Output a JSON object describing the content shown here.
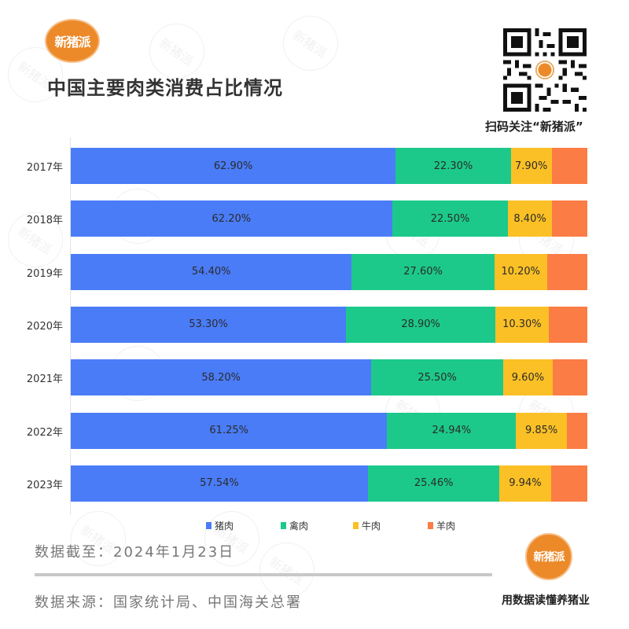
{
  "header": {
    "logo_text": "新猪派",
    "title": "中国主要肉类消费占比情况",
    "qr_caption": "扫码关注“新猪派”",
    "qr_center_text": "新猪派"
  },
  "colors": {
    "pork": "#4a7cf7",
    "poultry": "#1cc98b",
    "beef": "#fbc026",
    "mutton": "#fb7c45",
    "brand_orange": "#ec8a2a"
  },
  "chart_data": {
    "type": "bar",
    "orientation": "horizontal",
    "stacked": true,
    "normalized": true,
    "title": "中国主要肉类消费占比情况",
    "categories": [
      "2017年",
      "2018年",
      "2019年",
      "2020年",
      "2021年",
      "2022年",
      "2023年"
    ],
    "series": [
      {
        "name": "猪肉",
        "color": "#4a7cf7",
        "values": [
          62.9,
          62.2,
          54.4,
          53.3,
          58.2,
          61.25,
          57.54
        ],
        "labels": [
          "62.90%",
          "62.20%",
          "54.40%",
          "53.30%",
          "58.20%",
          "61.25%",
          "57.54%"
        ]
      },
      {
        "name": "禽肉",
        "color": "#1cc98b",
        "values": [
          22.3,
          22.5,
          27.6,
          28.9,
          25.5,
          24.94,
          25.46
        ],
        "labels": [
          "22.30%",
          "22.50%",
          "27.60%",
          "28.90%",
          "25.50%",
          "24.94%",
          "25.46%"
        ]
      },
      {
        "name": "牛肉",
        "color": "#fbc026",
        "values": [
          7.9,
          8.4,
          10.2,
          10.3,
          9.6,
          9.85,
          9.94
        ],
        "labels": [
          "7.90%",
          "8.40%",
          "10.20%",
          "10.30%",
          "9.60%",
          "9.85%",
          "9.94%"
        ]
      },
      {
        "name": "羊肉",
        "color": "#fb7c45",
        "values": [
          6.9,
          6.9,
          7.8,
          7.5,
          6.7,
          3.96,
          7.06
        ],
        "labels": [
          "",
          "",
          "",
          "",
          "",
          "",
          ""
        ]
      }
    ],
    "xlabel": "",
    "ylabel": "",
    "xlim": [
      0,
      100
    ],
    "grid": false,
    "legend_position": "bottom"
  },
  "legend": [
    {
      "label": "猪肉",
      "color": "#4a7cf7"
    },
    {
      "label": "禽肉",
      "color": "#1cc98b"
    },
    {
      "label": "牛肉",
      "color": "#fbc026"
    },
    {
      "label": "羊肉",
      "color": "#fb7c45"
    }
  ],
  "footer": {
    "cutoff": "数据截至：2024年1月23日",
    "source": "数据来源：国家统计局、中国海关总署",
    "logo_text": "新猪派",
    "slogan": "用数据读懂养猪业"
  },
  "watermark_text": "新猪派"
}
